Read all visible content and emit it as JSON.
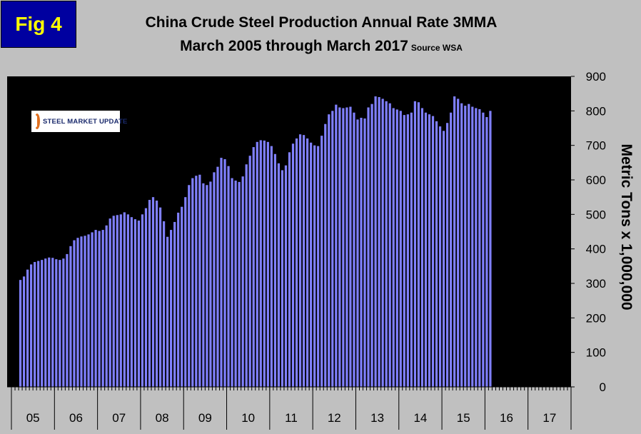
{
  "figure": {
    "badge": "Fig 4",
    "title_line1": "China Crude Steel Production Annual Rate 3MMA",
    "title_line2": "March 2005 through March 2017",
    "source": "Source WSA",
    "logo_text": "STEEL MARKET UPDATE"
  },
  "chart_data": {
    "type": "bar",
    "title": "China Crude Steel Production Annual Rate 3MMA",
    "subtitle": "March 2005 through March 2017",
    "xlabel": "",
    "ylabel": "Metric Tons x 1,000,000",
    "ylim": [
      0,
      900
    ],
    "yticks": [
      0,
      100,
      200,
      300,
      400,
      500,
      600,
      700,
      800,
      900
    ],
    "ytick_side": "right",
    "grid": false,
    "bar_color": "#8080ff",
    "background": "#000000",
    "year_labels": [
      "05",
      "06",
      "07",
      "08",
      "09",
      "10",
      "11",
      "12",
      "13",
      "14",
      "15",
      "16",
      "17"
    ],
    "x_start": "2005-01",
    "months_per_label": 12,
    "values": [
      null,
      null,
      310,
      320,
      340,
      355,
      362,
      365,
      368,
      372,
      375,
      374,
      370,
      368,
      372,
      385,
      408,
      425,
      432,
      436,
      438,
      442,
      448,
      455,
      452,
      455,
      468,
      488,
      496,
      498,
      500,
      506,
      500,
      492,
      486,
      482,
      500,
      518,
      542,
      550,
      540,
      520,
      480,
      435,
      455,
      478,
      505,
      522,
      550,
      585,
      605,
      612,
      615,
      590,
      585,
      595,
      622,
      638,
      664,
      660,
      640,
      605,
      598,
      594,
      610,
      645,
      670,
      695,
      710,
      715,
      714,
      710,
      698,
      675,
      648,
      628,
      642,
      680,
      705,
      720,
      732,
      730,
      720,
      708,
      700,
      698,
      728,
      762,
      790,
      800,
      818,
      810,
      808,
      810,
      812,
      795,
      775,
      780,
      778,
      810,
      820,
      842,
      840,
      835,
      828,
      822,
      808,
      804,
      800,
      788,
      790,
      795,
      828,
      825,
      808,
      795,
      790,
      785,
      770,
      755,
      742,
      765,
      795,
      842,
      835,
      822,
      815,
      820,
      812,
      808,
      805,
      795,
      782,
      800
    ]
  }
}
